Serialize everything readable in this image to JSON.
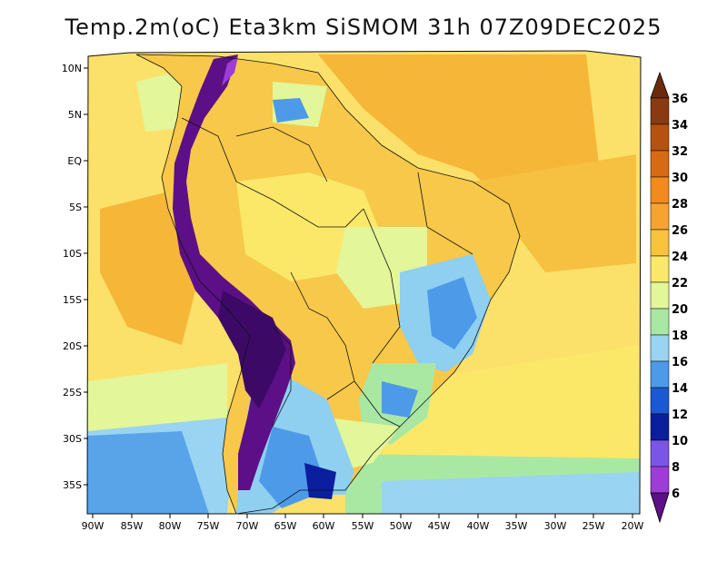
{
  "title": "Temp.2m(oC) Eta3km SiSMOM 31h 07Z09DEC2025",
  "lat_labels": [
    "10N",
    "5N",
    "EQ",
    "5S",
    "10S",
    "15S",
    "20S",
    "25S",
    "30S",
    "35S"
  ],
  "lon_labels": [
    "90W",
    "85W",
    "80W",
    "75W",
    "70W",
    "65W",
    "60W",
    "55W",
    "50W",
    "45W",
    "40W",
    "35W",
    "30W",
    "25W",
    "20W"
  ],
  "colorbar": {
    "labels": [
      "36",
      "34",
      "32",
      "30",
      "28",
      "26",
      "24",
      "22",
      "20",
      "18",
      "16",
      "14",
      "12",
      "10",
      "8",
      "6"
    ],
    "colors": [
      "#6b2a0c",
      "#8a3a10",
      "#b5520f",
      "#d96a14",
      "#f28b1c",
      "#f6a42f",
      "#f9c43c",
      "#fbe869",
      "#e3f699",
      "#a9e8a2",
      "#99d4f2",
      "#4d9ae8",
      "#1a58d6",
      "#0a1e9e",
      "#2f3ae3",
      "#7a55e8",
      "#9d3cd6",
      "#5c0f86"
    ],
    "sea_base": "#fbe16a",
    "andes": "#5c0f86",
    "brazil_inland": "#f7c84a",
    "highlands": "#8fcff0"
  }
}
